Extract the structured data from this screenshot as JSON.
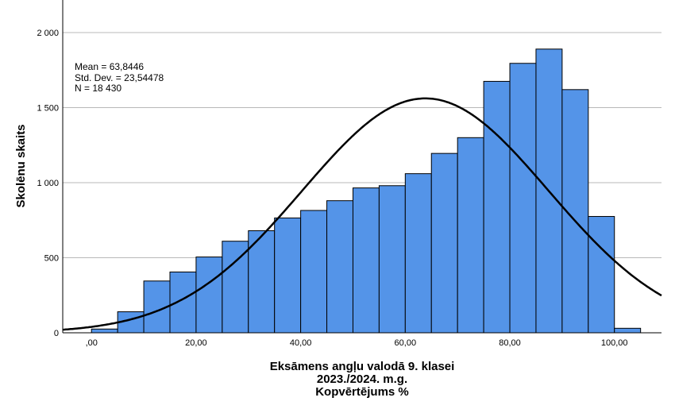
{
  "chart_data": {
    "type": "bar",
    "subtype": "histogram",
    "ylabel": "Skolēnu skaits",
    "xlabel_lines": [
      "Eksāmens angļu valodā 9. klasei",
      "2023./2024. m.g.",
      "Kopvērtējums %"
    ],
    "stats_lines": [
      "Mean = 63,8446",
      "Std. Dev. = 23,54478",
      "N = 18 430"
    ],
    "mean": 63.8446,
    "std_dev": 23.54478,
    "n": 18430,
    "xlim": [
      -5.5,
      109
    ],
    "ylim": [
      0,
      2200
    ],
    "bin_width": 5,
    "x_ticks": [
      0,
      20,
      40,
      60,
      80,
      100
    ],
    "x_tick_labels": [
      ",00",
      "20,00",
      "40,00",
      "60,00",
      "80,00",
      "100,00"
    ],
    "y_ticks": [
      0,
      500,
      1000,
      1500,
      2000
    ],
    "y_tick_labels": [
      "0",
      "500",
      "1 000",
      "1 500",
      "2 000"
    ],
    "grid": "horizontal",
    "bins": [
      {
        "start": 0,
        "end": 5,
        "value": 25
      },
      {
        "start": 5,
        "end": 10,
        "value": 140
      },
      {
        "start": 10,
        "end": 15,
        "value": 345
      },
      {
        "start": 15,
        "end": 20,
        "value": 405
      },
      {
        "start": 20,
        "end": 25,
        "value": 505
      },
      {
        "start": 25,
        "end": 30,
        "value": 610
      },
      {
        "start": 30,
        "end": 35,
        "value": 680
      },
      {
        "start": 35,
        "end": 40,
        "value": 765
      },
      {
        "start": 40,
        "end": 45,
        "value": 815
      },
      {
        "start": 45,
        "end": 50,
        "value": 880
      },
      {
        "start": 50,
        "end": 55,
        "value": 965
      },
      {
        "start": 55,
        "end": 60,
        "value": 980
      },
      {
        "start": 60,
        "end": 65,
        "value": 1060
      },
      {
        "start": 65,
        "end": 70,
        "value": 1195
      },
      {
        "start": 70,
        "end": 75,
        "value": 1300
      },
      {
        "start": 75,
        "end": 80,
        "value": 1675
      },
      {
        "start": 80,
        "end": 85,
        "value": 1795
      },
      {
        "start": 85,
        "end": 90,
        "value": 1890
      },
      {
        "start": 90,
        "end": 95,
        "value": 1620
      },
      {
        "start": 95,
        "end": 100,
        "value": 775
      },
      {
        "start": 100,
        "end": 105,
        "value": 30
      }
    ],
    "bar_color": "#5494e8",
    "curve_color": "#000000",
    "normal_curve": true
  }
}
